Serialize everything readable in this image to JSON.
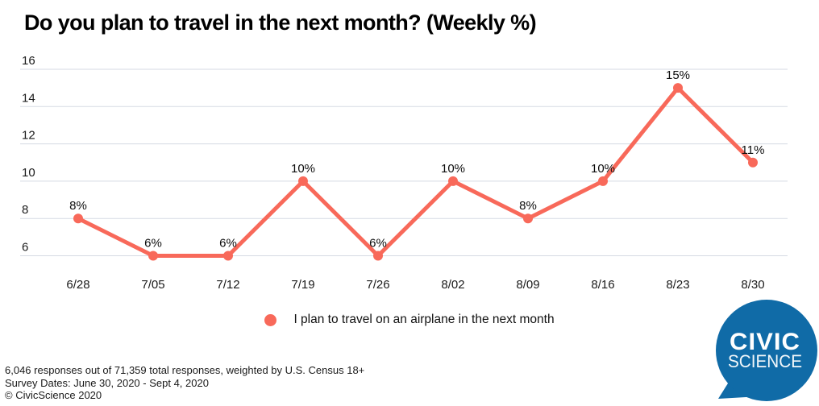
{
  "title": "Do you plan to travel in the next month? (Weekly %)",
  "chart_data": {
    "type": "line",
    "title": "Do you plan to travel in the next month? (Weekly %)",
    "categories": [
      "6/28",
      "7/05",
      "7/12",
      "7/19",
      "7/26",
      "8/02",
      "8/09",
      "8/16",
      "8/23",
      "8/30"
    ],
    "series": [
      {
        "name": "I plan to travel on an airplane in the next month",
        "values": [
          8,
          6,
          6,
          10,
          6,
          10,
          8,
          10,
          15,
          11
        ],
        "point_labels": [
          "8%",
          "6%",
          "6%",
          "10%",
          "6%",
          "10%",
          "8%",
          "10%",
          "15%",
          "11%"
        ],
        "color": "#F8695A"
      }
    ],
    "xlabel": "",
    "ylabel": "",
    "yticks": [
      16,
      14,
      12,
      10,
      8,
      6
    ],
    "ylim": [
      6,
      16
    ],
    "grid": true,
    "legend_position": "bottom-center"
  },
  "legend": {
    "label": "I plan to travel on an airplane in the next month",
    "marker_color": "#F8695A"
  },
  "footer": {
    "responses": "6,046 responses out of 71,359 total responses, weighted by U.S. Census 18+",
    "survey_dates": "Survey Dates:  June 30, 2020 - Sept 4, 2020",
    "copyright": "© CivicScience 2020"
  },
  "logo": {
    "line1": "CIVIC",
    "line2": "SCIENCE",
    "bubble_color": "#106BA7",
    "text_color": "#FFFFFF"
  },
  "colors": {
    "line": "#F8695A",
    "grid": "#D5DAE3",
    "text": "#1a1a1a",
    "title": "#000000",
    "background": "#FFFFFF"
  }
}
